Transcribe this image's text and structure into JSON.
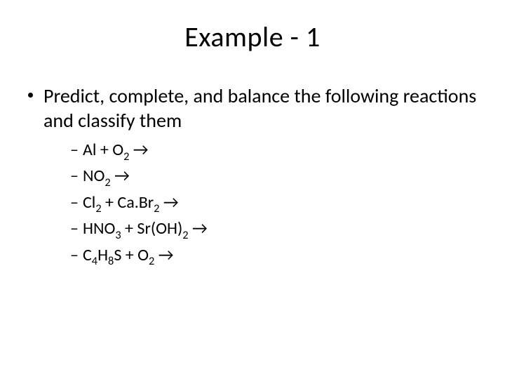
{
  "title": "Example - 1",
  "bullet_text": "Predict, complete, and balance the following reactions and classify them",
  "reactions": [
    {
      "html": "Al + O<span class=\"sub\">2</span> →"
    },
    {
      "html": "NO<span class=\"sub\">2</span> →"
    },
    {
      "html": "Cl<span class=\"sub\">2</span> + Ca.Br<span class=\"sub\">2</span> →"
    },
    {
      "html": "HNO<span class=\"sub\">3</span> + Sr(OH)<span class=\"sub\">2</span> →"
    },
    {
      "html": "C<span class=\"sub\">4</span>H<span class=\"sub\">8</span>S + O<span class=\"sub\">2</span> →"
    }
  ],
  "colors": {
    "background": "#ffffff",
    "text": "#000000"
  },
  "fontsizes": {
    "title": 40,
    "level1": 28,
    "level2": 24
  }
}
